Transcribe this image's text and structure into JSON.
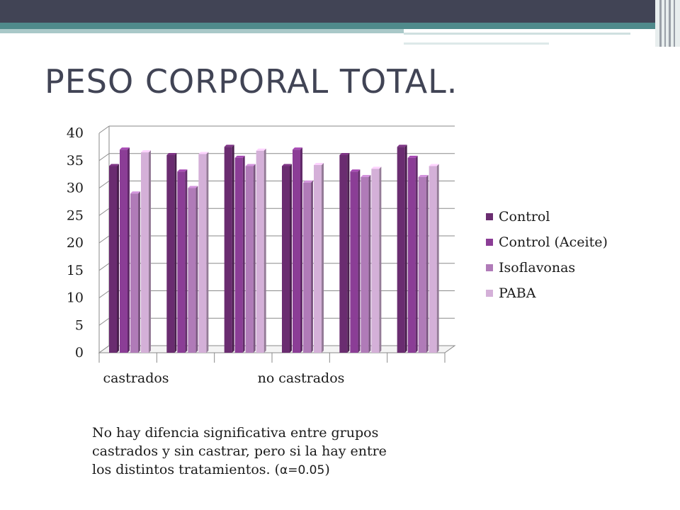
{
  "slide": {
    "title": "PESO CORPORAL TOTAL.",
    "note": {
      "line1": "No hay difencia significativa entre grupos",
      "line2": "castrados y sin castrar, pero si la hay entre",
      "line3_text": "los distintos tratamientos. (",
      "line3_alpha": "α=0.05",
      "line3_end": ")"
    }
  },
  "chart_data": {
    "type": "bar",
    "categories": [
      "castrados",
      "",
      "",
      "no castrados",
      "",
      ""
    ],
    "x_tick_labels": [
      "castrados",
      "no castrados"
    ],
    "series": [
      {
        "name": "Control",
        "color": "#6a2c70",
        "values": [
          34,
          36,
          37.5,
          34,
          36,
          37.5
        ]
      },
      {
        "name": "Control (Aceite)",
        "color": "#8b3d96",
        "values": [
          37,
          33,
          35.5,
          37,
          33,
          35.5
        ]
      },
      {
        "name": "Isoflavonas",
        "color": "#b07bb8",
        "values": [
          29,
          30,
          34,
          31,
          32,
          32
        ]
      },
      {
        "name": "PABA",
        "color": "#d4b0d8",
        "values": [
          36.5,
          36.2,
          36.8,
          34.2,
          33.5,
          34
        ]
      }
    ],
    "yticks": [
      0,
      5,
      10,
      15,
      20,
      25,
      30,
      35,
      40
    ],
    "ylim": [
      0,
      40
    ],
    "grid": true,
    "legend": "right"
  }
}
